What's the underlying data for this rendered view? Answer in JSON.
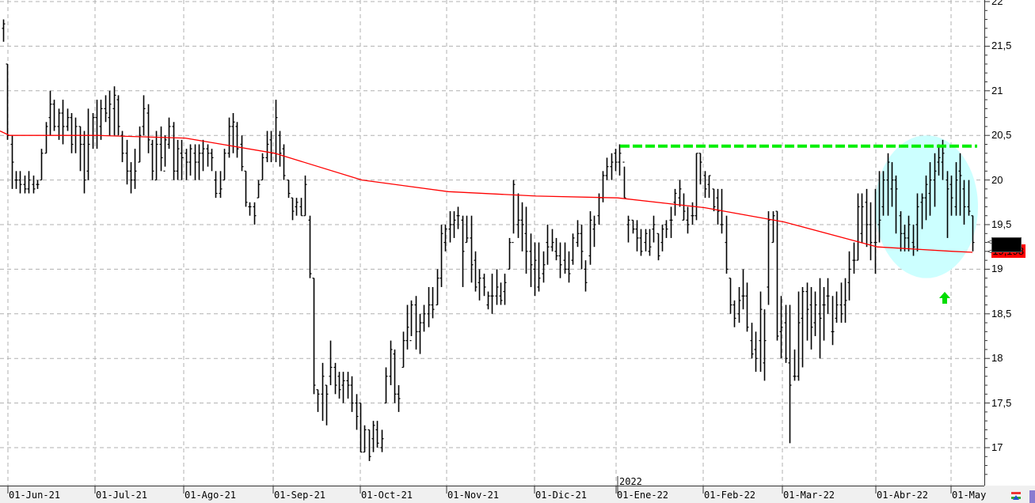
{
  "chart_data": {
    "type": "ohlc",
    "title": "",
    "xlabel": "",
    "ylabel": "",
    "ylim": [
      16.6,
      22
    ],
    "grid": true,
    "y_ticks": [
      "22",
      "21,5",
      "21",
      "20,5",
      "20",
      "19,5",
      "19",
      "18,5",
      "18",
      "17,5",
      "17"
    ],
    "y_tick_values": [
      22,
      21.5,
      21,
      20.5,
      20,
      19.5,
      19,
      18.5,
      18,
      17.5,
      17
    ],
    "x_ticks": [
      "01-Jun-21",
      "01-Jul-21",
      "01-Ago-21",
      "01-Sep-21",
      "01-Oct-21",
      "01-Nov-21",
      "01-Dic-21",
      "01-Ene-22",
      "01-Feb-22",
      "01-Mar-22",
      "01-Abr-22",
      "01-May"
    ],
    "year_marker": "2022",
    "bars_format": [
      "open",
      "high",
      "low",
      "close"
    ],
    "bars": [
      [
        21.7,
        21.8,
        21.55,
        21.75
      ],
      [
        21.3,
        21.3,
        20.45,
        20.5
      ],
      [
        20.4,
        20.5,
        19.9,
        20.2
      ],
      [
        20.0,
        20.1,
        19.9,
        20.0
      ],
      [
        20.0,
        20.1,
        19.85,
        19.95
      ],
      [
        19.95,
        20.05,
        19.85,
        19.9
      ],
      [
        19.9,
        20.1,
        19.85,
        20.0
      ],
      [
        19.95,
        20.05,
        19.85,
        19.9
      ],
      [
        19.95,
        20.0,
        19.9,
        19.95
      ],
      [
        20.0,
        20.35,
        20.0,
        20.3
      ],
      [
        20.3,
        20.65,
        20.3,
        20.6
      ],
      [
        20.7,
        21.0,
        20.5,
        20.85
      ],
      [
        20.85,
        20.9,
        20.55,
        20.6
      ],
      [
        20.6,
        20.8,
        20.45,
        20.75
      ],
      [
        20.75,
        20.9,
        20.4,
        20.6
      ],
      [
        20.6,
        20.8,
        20.55,
        20.7
      ],
      [
        20.7,
        20.75,
        20.3,
        20.4
      ],
      [
        20.5,
        20.7,
        20.3,
        20.6
      ],
      [
        20.6,
        20.6,
        20.1,
        20.4
      ],
      [
        20.4,
        20.55,
        19.85,
        20.0
      ],
      [
        20.1,
        20.8,
        20.0,
        20.4
      ],
      [
        20.5,
        20.75,
        20.35,
        20.7
      ],
      [
        20.7,
        20.9,
        20.35,
        20.5
      ],
      [
        20.6,
        20.9,
        20.45,
        20.8
      ],
      [
        20.8,
        20.95,
        20.65,
        20.75
      ],
      [
        20.7,
        21.0,
        20.5,
        20.85
      ],
      [
        20.8,
        21.05,
        20.5,
        20.95
      ],
      [
        20.9,
        20.95,
        20.5,
        20.6
      ],
      [
        20.5,
        20.55,
        20.2,
        20.3
      ],
      [
        20.3,
        20.45,
        19.95,
        20.1
      ],
      [
        20.1,
        20.2,
        19.85,
        20.0
      ],
      [
        20.0,
        20.35,
        19.9,
        20.1
      ],
      [
        20.2,
        20.6,
        20.2,
        20.5
      ],
      [
        20.6,
        20.95,
        20.5,
        20.8
      ],
      [
        20.75,
        20.85,
        20.3,
        20.45
      ],
      [
        20.4,
        20.45,
        20.0,
        20.1
      ],
      [
        20.0,
        20.55,
        20.0,
        20.4
      ],
      [
        20.4,
        20.6,
        20.1,
        20.25
      ],
      [
        20.1,
        20.5,
        20.15,
        20.45
      ],
      [
        20.4,
        20.7,
        20.35,
        20.6
      ],
      [
        20.6,
        20.65,
        20.0,
        20.1
      ],
      [
        20.1,
        20.45,
        20.0,
        20.35
      ],
      [
        20.3,
        20.45,
        20.0,
        20.25
      ],
      [
        20.3,
        20.35,
        20.0,
        20.2
      ],
      [
        20.2,
        20.4,
        20.05,
        20.35
      ],
      [
        20.3,
        20.4,
        20.0,
        20.2
      ],
      [
        20.2,
        20.4,
        20.0,
        20.3
      ],
      [
        20.3,
        20.45,
        20.1,
        20.35
      ],
      [
        20.35,
        20.4,
        20.15,
        20.3
      ],
      [
        20.3,
        20.35,
        20.1,
        20.25
      ],
      [
        20.0,
        20.1,
        19.8,
        19.85
      ],
      [
        19.85,
        20.1,
        19.8,
        19.9
      ],
      [
        20.0,
        20.35,
        20.0,
        20.3
      ],
      [
        20.3,
        20.7,
        20.25,
        20.6
      ],
      [
        20.6,
        20.75,
        20.3,
        20.65
      ],
      [
        20.6,
        20.65,
        20.25,
        20.35
      ],
      [
        20.4,
        20.5,
        20.1,
        20.15
      ],
      [
        20.1,
        20.1,
        19.7,
        19.75
      ],
      [
        19.7,
        19.75,
        19.6,
        19.7
      ],
      [
        19.7,
        19.75,
        19.5,
        19.6
      ],
      [
        19.8,
        20.0,
        19.8,
        19.95
      ],
      [
        20.0,
        20.3,
        20.0,
        20.25
      ],
      [
        20.25,
        20.55,
        20.2,
        20.4
      ],
      [
        20.45,
        20.55,
        20.2,
        20.3
      ],
      [
        20.3,
        20.9,
        20.2,
        20.7
      ],
      [
        20.5,
        20.55,
        20.15,
        20.3
      ],
      [
        20.35,
        20.4,
        20.0,
        20.05
      ],
      [
        20.0,
        20.0,
        19.8,
        19.85
      ],
      [
        19.8,
        19.8,
        19.55,
        19.65
      ],
      [
        19.7,
        19.8,
        19.6,
        19.75
      ],
      [
        19.7,
        19.8,
        19.6,
        19.6
      ],
      [
        19.6,
        20.05,
        19.6,
        19.95
      ],
      [
        19.55,
        19.6,
        18.9,
        18.95
      ],
      [
        18.9,
        18.9,
        17.6,
        17.7
      ],
      [
        17.65,
        17.65,
        17.4,
        17.6
      ],
      [
        17.6,
        17.95,
        17.3,
        17.8
      ],
      [
        17.7,
        17.7,
        17.25,
        17.6
      ],
      [
        17.8,
        18.2,
        17.7,
        17.9
      ],
      [
        17.9,
        17.95,
        17.6,
        17.7
      ],
      [
        17.8,
        17.85,
        17.55,
        17.65
      ],
      [
        17.7,
        17.85,
        17.5,
        17.75
      ],
      [
        17.75,
        17.85,
        17.55,
        17.7
      ],
      [
        17.7,
        17.8,
        17.4,
        17.5
      ],
      [
        17.5,
        17.6,
        17.2,
        17.35
      ],
      [
        17.5,
        17.5,
        16.95,
        16.95
      ],
      [
        16.95,
        17.25,
        16.95,
        17.2
      ],
      [
        17.2,
        17.2,
        16.85,
        16.9
      ],
      [
        17.1,
        17.3,
        16.95,
        17.25
      ],
      [
        17.2,
        17.3,
        17.0,
        17.05
      ],
      [
        17.0,
        17.2,
        16.95,
        17.1
      ],
      [
        17.5,
        17.9,
        17.5,
        17.8
      ],
      [
        17.8,
        18.2,
        17.7,
        18.1
      ],
      [
        18.05,
        18.1,
        17.5,
        17.6
      ],
      [
        17.6,
        17.7,
        17.4,
        17.55
      ],
      [
        17.9,
        18.3,
        17.9,
        18.2
      ],
      [
        18.2,
        18.6,
        18.1,
        18.35
      ],
      [
        18.2,
        18.65,
        18.25,
        18.6
      ],
      [
        18.6,
        18.7,
        18.1,
        18.3
      ],
      [
        18.3,
        18.5,
        18.05,
        18.4
      ],
      [
        18.4,
        18.6,
        18.3,
        18.5
      ],
      [
        18.5,
        18.8,
        18.35,
        18.6
      ],
      [
        18.6,
        18.8,
        18.45,
        18.55
      ],
      [
        18.6,
        19.0,
        18.6,
        18.9
      ],
      [
        18.9,
        19.5,
        18.8,
        19.4
      ],
      [
        19.3,
        19.5,
        19.2,
        19.45
      ],
      [
        19.45,
        19.65,
        19.3,
        19.5
      ],
      [
        19.5,
        19.65,
        19.35,
        19.55
      ],
      [
        19.6,
        19.7,
        19.45,
        19.6
      ],
      [
        19.55,
        19.6,
        18.8,
        19.2
      ],
      [
        19.3,
        19.6,
        19.3,
        19.35
      ],
      [
        19.35,
        19.6,
        18.85,
        19.05
      ],
      [
        19.1,
        19.2,
        18.75,
        18.8
      ],
      [
        18.85,
        19.0,
        18.65,
        18.9
      ],
      [
        18.9,
        18.95,
        18.7,
        18.8
      ],
      [
        18.6,
        18.75,
        18.55,
        18.7
      ],
      [
        18.7,
        18.95,
        18.5,
        18.7
      ],
      [
        18.7,
        19.0,
        18.6,
        18.8
      ],
      [
        18.7,
        18.85,
        18.6,
        18.65
      ],
      [
        18.75,
        18.95,
        18.6,
        18.85
      ],
      [
        19.0,
        19.35,
        19.0,
        19.3
      ],
      [
        19.3,
        20.0,
        19.4,
        19.95
      ],
      [
        19.5,
        19.85,
        19.35,
        19.55
      ],
      [
        19.55,
        19.75,
        19.2,
        19.5
      ],
      [
        19.4,
        19.7,
        18.95,
        19.2
      ],
      [
        19.2,
        19.4,
        18.8,
        19.05
      ],
      [
        19.0,
        19.3,
        18.7,
        19.1
      ],
      [
        18.8,
        19.3,
        18.75,
        18.9
      ],
      [
        18.95,
        19.2,
        18.85,
        19.05
      ],
      [
        19.3,
        19.5,
        19.05,
        19.25
      ],
      [
        19.25,
        19.45,
        19.2,
        19.3
      ],
      [
        19.2,
        19.35,
        19.1,
        19.15
      ],
      [
        19.15,
        19.3,
        18.9,
        19.05
      ],
      [
        19.1,
        19.3,
        18.95,
        19.0
      ],
      [
        19.0,
        19.2,
        18.85,
        18.95
      ],
      [
        19.1,
        19.4,
        19.05,
        19.35
      ],
      [
        19.3,
        19.55,
        19.25,
        19.4
      ],
      [
        19.4,
        19.5,
        19.0,
        19.2
      ],
      [
        19.0,
        19.1,
        18.75,
        18.85
      ],
      [
        19.15,
        19.65,
        19.05,
        19.55
      ],
      [
        19.45,
        19.6,
        19.25,
        19.5
      ],
      [
        19.6,
        19.85,
        19.5,
        19.8
      ],
      [
        19.8,
        20.1,
        19.75,
        20.05
      ],
      [
        20.05,
        20.25,
        20.0,
        20.15
      ],
      [
        20.15,
        20.3,
        20.0,
        20.2
      ],
      [
        20.3,
        20.35,
        20.1,
        20.2
      ],
      [
        20.2,
        20.4,
        20.05,
        20.3
      ],
      [
        20.2,
        20.15,
        19.8,
        19.8
      ],
      [
        19.5,
        19.6,
        19.3,
        19.55
      ],
      [
        19.55,
        19.55,
        19.4,
        19.45
      ],
      [
        19.45,
        19.55,
        19.2,
        19.35
      ],
      [
        19.35,
        19.45,
        19.15,
        19.2
      ],
      [
        19.3,
        19.45,
        19.2,
        19.4
      ],
      [
        19.2,
        19.45,
        19.15,
        19.25
      ],
      [
        19.45,
        19.6,
        19.3,
        19.5
      ],
      [
        19.4,
        19.4,
        19.1,
        19.15
      ],
      [
        19.3,
        19.5,
        19.2,
        19.45
      ],
      [
        19.5,
        19.55,
        19.35,
        19.45
      ],
      [
        19.55,
        19.7,
        19.35,
        19.55
      ],
      [
        19.75,
        19.9,
        19.6,
        19.85
      ],
      [
        19.8,
        20.0,
        19.7,
        19.9
      ],
      [
        19.55,
        19.85,
        19.55,
        19.65
      ],
      [
        19.55,
        19.7,
        19.4,
        19.5
      ],
      [
        19.6,
        19.75,
        19.5,
        19.6
      ],
      [
        19.6,
        20.3,
        19.55,
        20.3
      ],
      [
        20.3,
        20.3,
        19.95,
        20.2
      ],
      [
        20.05,
        20.1,
        19.8,
        19.9
      ],
      [
        19.95,
        20.05,
        19.8,
        20.05
      ],
      [
        19.9,
        19.9,
        19.65,
        19.7
      ],
      [
        19.8,
        19.9,
        19.5,
        19.65
      ],
      [
        19.5,
        19.9,
        19.4,
        19.5
      ],
      [
        19.3,
        19.6,
        18.95,
        19.0
      ],
      [
        18.9,
        18.9,
        18.5,
        18.6
      ],
      [
        18.6,
        18.65,
        18.35,
        18.45
      ],
      [
        18.5,
        18.8,
        18.4,
        18.65
      ],
      [
        18.7,
        19.0,
        18.55,
        18.7
      ],
      [
        18.7,
        18.85,
        18.3,
        18.35
      ],
      [
        18.2,
        18.4,
        18.0,
        18.05
      ],
      [
        18.1,
        18.3,
        17.85,
        18.0
      ],
      [
        18.2,
        18.75,
        17.85,
        18.55
      ],
      [
        17.95,
        18.55,
        17.75,
        18.2
      ],
      [
        18.8,
        19.65,
        18.6,
        19.55
      ],
      [
        19.3,
        19.65,
        19.3,
        19.6
      ],
      [
        19.65,
        19.65,
        18.2,
        18.25
      ],
      [
        18.3,
        18.7,
        18.0,
        18.35
      ],
      [
        18.4,
        18.6,
        17.95,
        18.0
      ],
      [
        17.95,
        18.6,
        17.05,
        17.7
      ],
      [
        17.8,
        18.1,
        17.75,
        17.8
      ],
      [
        17.8,
        18.75,
        17.75,
        18.4
      ],
      [
        18.45,
        18.8,
        17.9,
        18.75
      ],
      [
        18.75,
        18.85,
        18.2,
        18.55
      ],
      [
        18.6,
        18.8,
        18.1,
        18.35
      ],
      [
        18.4,
        18.75,
        18.25,
        18.6
      ],
      [
        18.5,
        18.9,
        18.0,
        18.45
      ],
      [
        18.6,
        18.8,
        18.2,
        18.6
      ],
      [
        18.7,
        18.9,
        18.5,
        18.7
      ],
      [
        18.3,
        18.7,
        18.15,
        18.3
      ],
      [
        18.45,
        18.75,
        18.4,
        18.6
      ],
      [
        18.6,
        18.85,
        18.4,
        18.5
      ],
      [
        18.6,
        18.9,
        18.4,
        18.65
      ],
      [
        18.85,
        19.2,
        18.65,
        19.0
      ],
      [
        19.1,
        19.3,
        18.95,
        19.1
      ],
      [
        19.1,
        19.85,
        19.1,
        19.7
      ],
      [
        19.4,
        19.85,
        19.3,
        19.7
      ],
      [
        19.75,
        19.9,
        19.25,
        19.5
      ],
      [
        19.5,
        19.75,
        19.1,
        19.3
      ],
      [
        19.3,
        19.9,
        18.95,
        19.3
      ],
      [
        19.5,
        20.1,
        19.3,
        19.55
      ],
      [
        19.7,
        20.1,
        19.6,
        20.0
      ],
      [
        20.0,
        20.3,
        19.6,
        20.2
      ],
      [
        19.9,
        20.2,
        19.7,
        20.0
      ],
      [
        20.0,
        20.05,
        19.4,
        19.9
      ],
      [
        19.6,
        19.65,
        19.2,
        19.4
      ],
      [
        19.4,
        19.5,
        19.2,
        19.35
      ],
      [
        19.35,
        19.6,
        19.2,
        19.5
      ],
      [
        19.3,
        19.5,
        19.15,
        19.25
      ],
      [
        19.5,
        19.85,
        19.2,
        19.7
      ],
      [
        19.75,
        19.85,
        19.45,
        19.8
      ],
      [
        19.8,
        20.05,
        19.55,
        19.95
      ],
      [
        19.85,
        20.2,
        19.6,
        20.0
      ],
      [
        20.0,
        20.3,
        19.7,
        20.1
      ],
      [
        20.2,
        20.4,
        20.05,
        20.25
      ],
      [
        20.2,
        20.45,
        20.0,
        20.3
      ],
      [
        20.0,
        20.1,
        19.35,
        19.9
      ],
      [
        19.95,
        20.05,
        19.6,
        19.8
      ],
      [
        19.7,
        20.2,
        19.6,
        20.0
      ],
      [
        20.1,
        20.3,
        19.6,
        20.05
      ],
      [
        19.9,
        20.0,
        19.5,
        19.7
      ],
      [
        19.7,
        20.0,
        19.6,
        19.65
      ],
      [
        19.6,
        19.6,
        19.2,
        19.3
      ]
    ],
    "moving_average": {
      "color": "#ff0000",
      "at_month_starts": [
        20.5,
        20.5,
        20.47,
        20.3,
        20.0,
        19.87,
        19.82,
        19.8,
        19.69,
        19.53,
        19.25,
        19.2
      ],
      "first": 20.55,
      "last": 19.19
    },
    "resistance": {
      "value": 20.38,
      "from": "01-Ene-22",
      "color": "#00ee00",
      "style": "dashed"
    },
    "highlight_ellipse": {
      "color": "#ccffff",
      "center_value": 19.7,
      "span_values": [
        18.9,
        20.5
      ]
    },
    "signal": {
      "icon": "up-arrow-icon",
      "color": "#00dd00"
    },
    "last_value": {
      "label": "19,198",
      "value": 19.198,
      "color": "#ff0000"
    },
    "bar_color": "#000000",
    "grid_color": "#b0b0b0"
  }
}
